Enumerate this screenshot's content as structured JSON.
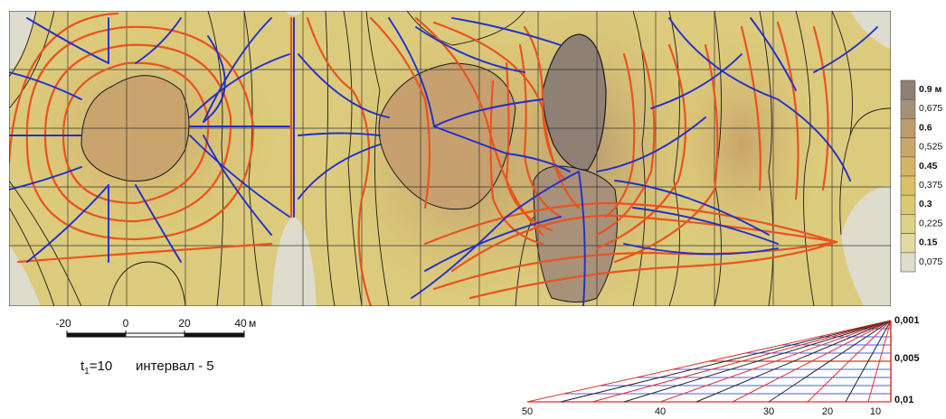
{
  "legend": {
    "entries": [
      {
        "label": "0.9 м",
        "color": "#8e8074",
        "bold": true
      },
      {
        "label": "0,675",
        "color": "#a49277",
        "bold": false
      },
      {
        "label": "0.6",
        "color": "#bd9c6f",
        "bold": true
      },
      {
        "label": "0,525",
        "color": "#c9a86a",
        "bold": false
      },
      {
        "label": "0.45",
        "color": "#d4b464",
        "bold": true
      },
      {
        "label": "0,375",
        "color": "#d9c068",
        "bold": false
      },
      {
        "label": "0.3",
        "color": "#dcc870",
        "bold": true
      },
      {
        "label": "0,225",
        "color": "#dfd286",
        "bold": false
      },
      {
        "label": "0.15",
        "color": "#e1dba2",
        "bold": true
      },
      {
        "label": "0,075",
        "color": "#dddccd",
        "bold": false
      }
    ]
  },
  "scale_bar": {
    "ticks": [
      "-20",
      "0",
      "20",
      "40"
    ],
    "unit": "м"
  },
  "note": {
    "t_letter": "t",
    "t_sub": "1",
    "t_value": "=10",
    "interval": "интервал - 5"
  },
  "nomogram": {
    "right_labels": [
      "0,001",
      "0,005",
      "0,01"
    ],
    "bottom_labels": [
      "50",
      "40",
      "30",
      "20",
      "10"
    ]
  },
  "colors": {
    "flow_lines": "#e8541e",
    "stream_lines": "#1f2fcf",
    "contours": "#1a1a1a",
    "grid": "#333333",
    "nomogram_red": "#e0302a",
    "nomogram_blue": "#4a5de0",
    "background_low": "#dddccd",
    "background_high": "#8e8074"
  }
}
